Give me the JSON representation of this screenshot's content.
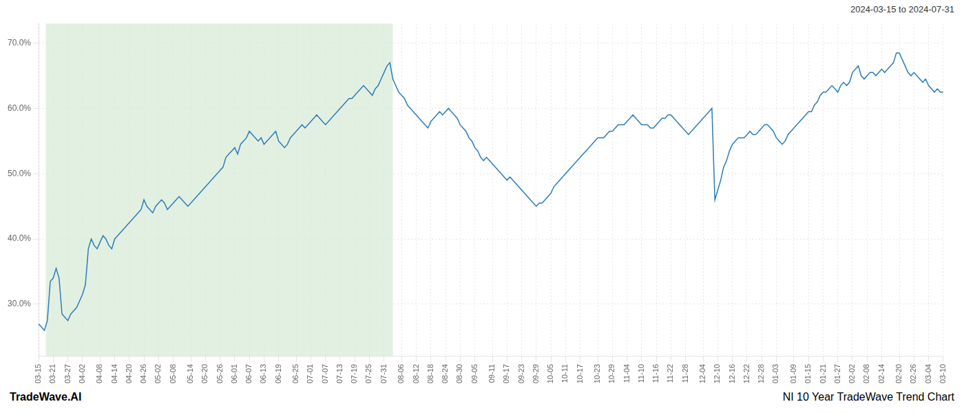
{
  "chart_data": {
    "type": "line",
    "title": "NI 10 Year TradeWave Trend Chart",
    "subtitle": "2024-03-15 to 2024-07-31",
    "annotations": [
      "TradeWave.AI"
    ],
    "categories": [
      "03-15",
      null,
      null,
      null,
      null,
      "03-21",
      null,
      null,
      null,
      null,
      "03-27",
      null,
      null,
      null,
      null,
      "04-02",
      null,
      null,
      null,
      null,
      null,
      "04-08",
      null,
      null,
      null,
      null,
      "04-14",
      null,
      null,
      null,
      null,
      "04-20",
      null,
      null,
      null,
      null,
      "04-26",
      null,
      null,
      null,
      null,
      "05-02",
      null,
      null,
      null,
      null,
      "05-08",
      null,
      null,
      null,
      null,
      null,
      "05-14",
      null,
      null,
      null,
      null,
      "05-20",
      null,
      null,
      null,
      null,
      "05-26",
      null,
      null,
      null,
      null,
      "06-01",
      null,
      null,
      null,
      null,
      "06-07",
      null,
      null,
      null,
      null,
      "06-13",
      null,
      null,
      null,
      null,
      "06-19",
      null,
      null,
      null,
      null,
      null,
      "06-25",
      null,
      null,
      null,
      null,
      "07-01",
      null,
      null,
      null,
      null,
      "07-07",
      null,
      null,
      null,
      null,
      "07-13",
      null,
      null,
      null,
      null,
      "07-19",
      null,
      null,
      null,
      null,
      "07-25",
      null,
      null,
      null,
      null,
      "07-31",
      null,
      null,
      null,
      null,
      null,
      "08-06",
      null,
      null,
      null,
      null,
      "08-12",
      null,
      null,
      null,
      null,
      "08-18",
      null,
      null,
      null,
      null,
      "08-24",
      null,
      null,
      null,
      null,
      "08-30",
      null,
      null,
      null,
      null,
      "09-05",
      null,
      null,
      null,
      null,
      null,
      "09-11",
      null,
      null,
      null,
      null,
      "09-17",
      null,
      null,
      null,
      null,
      "09-23",
      null,
      null,
      null,
      null,
      "09-29",
      null,
      null,
      null,
      null,
      "10-05",
      null,
      null,
      null,
      null,
      "10-11",
      null,
      null,
      null,
      null,
      "10-17",
      null,
      null,
      null,
      null,
      null,
      "10-23",
      null,
      null,
      null,
      null,
      "10-29",
      null,
      null,
      null,
      null,
      "11-04",
      null,
      null,
      null,
      null,
      "11-10",
      null,
      null,
      null,
      null,
      "11-16",
      null,
      null,
      null,
      null,
      "11-22",
      null,
      null,
      null,
      null,
      "11-28",
      null,
      null,
      null,
      null,
      null,
      "12-04",
      null,
      null,
      null,
      null,
      "12-10",
      null,
      null,
      null,
      null,
      "12-16",
      null,
      null,
      null,
      null,
      "12-22",
      null,
      null,
      null,
      null,
      "12-28",
      null,
      null,
      null,
      null,
      "01-03",
      null,
      null,
      null,
      null,
      null,
      "01-09",
      null,
      null,
      null,
      null,
      "01-15",
      null,
      null,
      null,
      null,
      "01-21",
      null,
      null,
      null,
      null,
      "01-27",
      null,
      null,
      null,
      null,
      "02-02",
      null,
      null,
      null,
      null,
      "02-08",
      null,
      null,
      null,
      null,
      "02-14",
      null,
      null,
      null,
      null,
      null,
      "02-20",
      null,
      null,
      null,
      null,
      "02-26",
      null,
      null,
      null,
      null,
      "03-04",
      null,
      null,
      null,
      null,
      "03-10"
    ],
    "values": [
      27.0,
      26.5,
      26.0,
      27.5,
      33.5,
      34.0,
      35.5,
      34.0,
      28.5,
      28.0,
      27.5,
      28.5,
      29.0,
      29.5,
      30.5,
      31.5,
      33.0,
      38.5,
      40.0,
      39.0,
      38.5,
      39.5,
      40.5,
      40.0,
      39.0,
      38.5,
      40.0,
      40.5,
      41.0,
      41.5,
      42.0,
      42.5,
      43.0,
      43.5,
      44.0,
      44.5,
      46.0,
      45.0,
      44.5,
      44.0,
      45.0,
      45.5,
      46.0,
      45.5,
      44.5,
      45.0,
      45.5,
      46.0,
      46.5,
      46.0,
      45.5,
      45.0,
      45.5,
      46.0,
      46.5,
      47.0,
      47.5,
      48.0,
      48.5,
      49.0,
      49.5,
      50.0,
      50.5,
      51.0,
      52.5,
      53.0,
      53.5,
      54.0,
      53.0,
      54.5,
      55.0,
      55.5,
      56.5,
      56.0,
      55.5,
      55.0,
      55.5,
      54.5,
      55.0,
      55.5,
      56.0,
      56.5,
      55.0,
      54.5,
      54.0,
      54.5,
      55.5,
      56.0,
      56.5,
      57.0,
      57.5,
      57.0,
      57.5,
      58.0,
      58.5,
      59.0,
      58.5,
      58.0,
      57.5,
      58.0,
      58.5,
      59.0,
      59.5,
      60.0,
      60.5,
      61.0,
      61.5,
      61.5,
      62.0,
      62.5,
      63.0,
      63.5,
      63.0,
      62.5,
      62.0,
      63.0,
      63.5,
      64.5,
      65.5,
      66.5,
      67.0,
      64.5,
      63.5,
      62.5,
      62.0,
      61.5,
      60.5,
      60.0,
      59.5,
      59.0,
      58.5,
      58.0,
      57.5,
      57.0,
      58.0,
      58.5,
      59.0,
      59.5,
      59.0,
      59.5,
      60.0,
      59.5,
      59.0,
      58.5,
      57.5,
      57.0,
      56.5,
      55.5,
      55.0,
      54.0,
      53.5,
      52.5,
      52.0,
      52.5,
      52.0,
      51.5,
      51.0,
      50.5,
      50.0,
      49.5,
      49.0,
      49.5,
      49.0,
      48.5,
      48.0,
      47.5,
      47.0,
      46.5,
      46.0,
      45.5,
      45.0,
      45.5,
      45.5,
      46.0,
      46.5,
      47.0,
      48.0,
      48.5,
      49.0,
      49.5,
      50.0,
      50.5,
      51.0,
      51.5,
      52.0,
      52.5,
      53.0,
      53.5,
      54.0,
      54.5,
      55.0,
      55.5,
      55.5,
      55.5,
      56.0,
      56.5,
      56.5,
      57.0,
      57.5,
      57.5,
      57.5,
      58.0,
      58.5,
      59.0,
      58.5,
      58.0,
      57.5,
      57.5,
      57.5,
      57.0,
      57.0,
      57.5,
      58.0,
      58.5,
      58.5,
      59.0,
      59.0,
      58.5,
      58.0,
      57.5,
      57.0,
      56.5,
      56.0,
      56.5,
      57.0,
      57.5,
      58.0,
      58.5,
      59.0,
      59.5,
      60.0,
      46.0,
      47.5,
      49.0,
      51.0,
      52.0,
      53.5,
      54.5,
      55.0,
      55.5,
      55.5,
      55.5,
      56.0,
      56.5,
      56.0,
      56.0,
      56.5,
      57.0,
      57.5,
      57.5,
      57.0,
      56.5,
      55.5,
      55.0,
      54.5,
      55.0,
      56.0,
      56.5,
      57.0,
      57.5,
      58.0,
      58.5,
      59.0,
      59.5,
      59.5,
      60.5,
      61.0,
      62.0,
      62.5,
      62.5,
      63.0,
      63.5,
      63.0,
      62.5,
      63.5,
      64.0,
      63.5,
      64.0,
      65.5,
      66.0,
      66.5,
      65.0,
      64.5,
      65.0,
      65.5,
      65.5,
      65.0,
      65.5,
      66.0,
      65.5,
      66.0,
      66.5,
      67.0,
      68.5,
      68.5,
      67.5,
      66.5,
      65.5,
      65.0,
      65.5,
      65.0,
      64.5,
      64.0,
      64.5,
      63.5,
      63.0,
      62.5,
      63.0,
      62.5,
      62.5
    ],
    "color": "#2b7bb9",
    "ylim": [
      22,
      73
    ],
    "yticks": [
      {
        "value": 30,
        "label": "30.0%"
      },
      {
        "value": 40,
        "label": "40.0%"
      },
      {
        "value": 50,
        "label": "50.0%"
      },
      {
        "value": 60,
        "label": "60.0%"
      },
      {
        "value": 70,
        "label": "70.0%"
      }
    ],
    "grid": true,
    "shaded_range": {
      "start": "03-21",
      "end": "07-31",
      "color": "#d6ead6"
    }
  }
}
